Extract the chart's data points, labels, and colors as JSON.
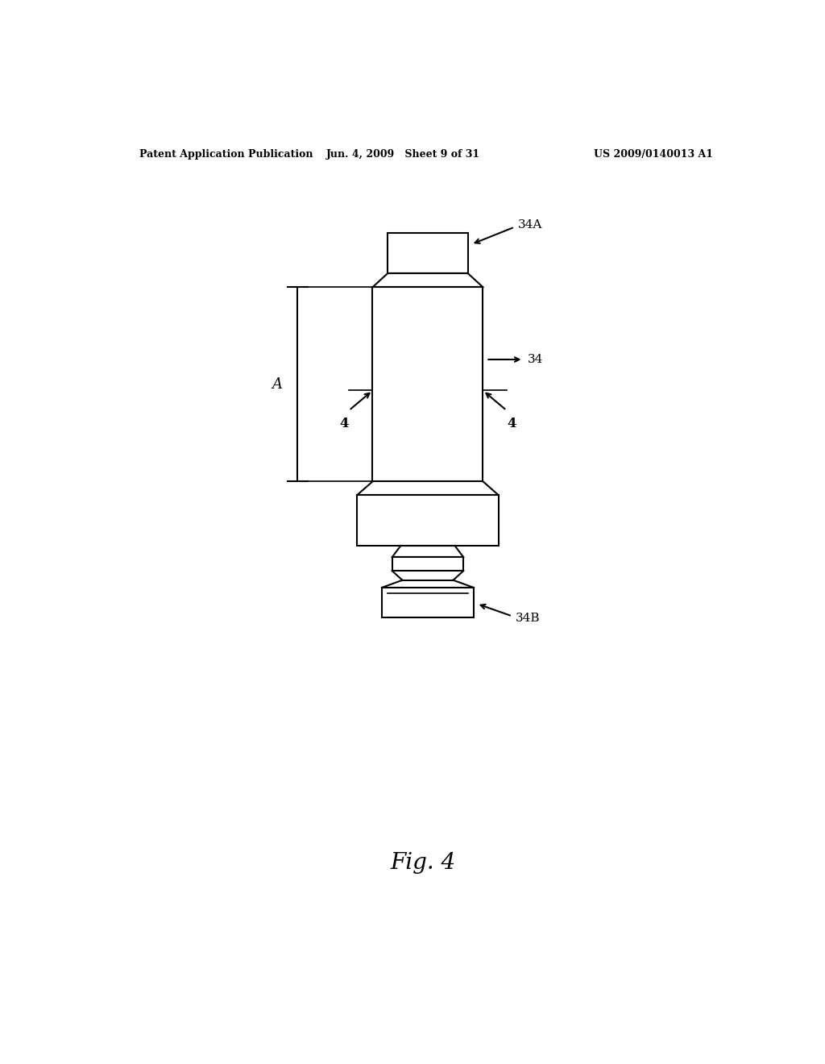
{
  "bg_color": "#ffffff",
  "line_color": "#000000",
  "line_width": 1.5,
  "header_left": "Patent Application Publication",
  "header_center": "Jun. 4, 2009   Sheet 9 of 31",
  "header_right": "US 2009/0140013 A1",
  "fig_label": "Fig. 4",
  "label_34A": "34A",
  "label_34": "34",
  "label_34B": "34B",
  "label_4_left": "4",
  "label_4_right": "4",
  "label_A": "A"
}
